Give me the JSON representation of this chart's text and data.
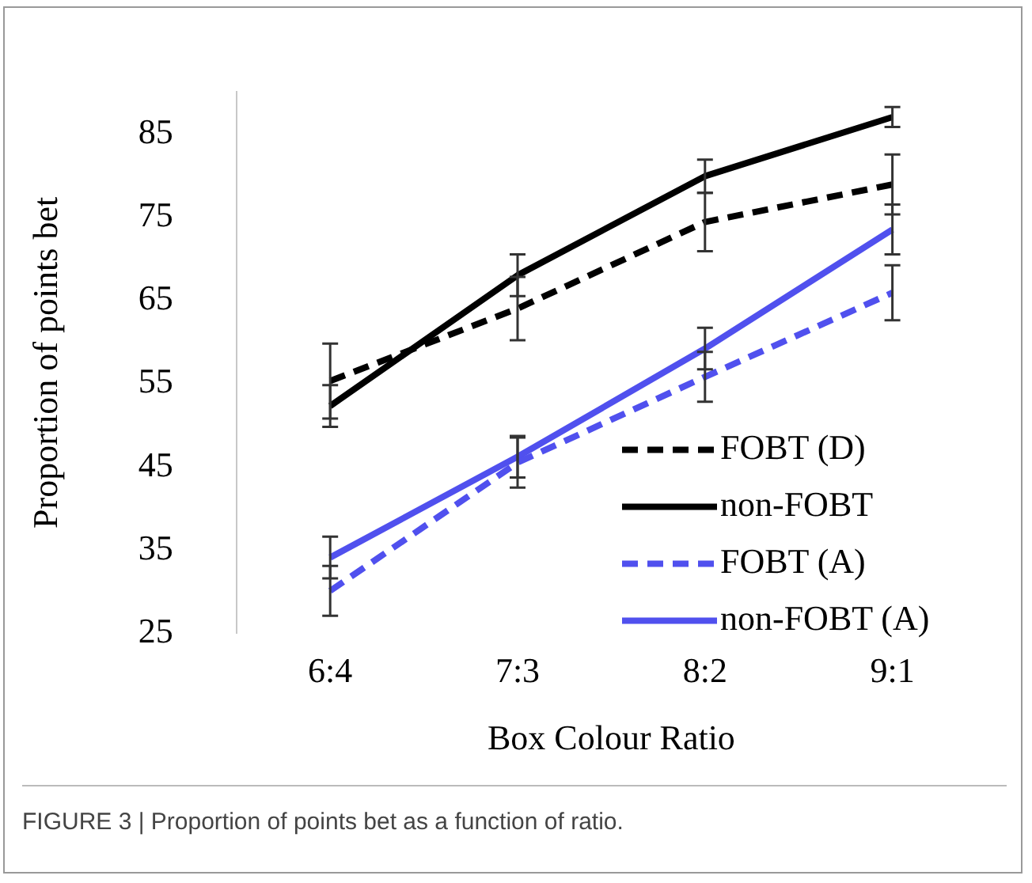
{
  "chart_data": {
    "type": "line",
    "xlabel": "Box Colour Ratio",
    "ylabel": "Proportion of points bet",
    "categories": [
      "6:4",
      "7:3",
      "8:2",
      "9:1"
    ],
    "series": [
      {
        "name": "FOBT (D)",
        "color": "#000000",
        "line_style": "dashed",
        "values": [
          55.3,
          64,
          74.4,
          78.9
        ],
        "errors": [
          4.5,
          3.8,
          3.5,
          3.6
        ]
      },
      {
        "name": "non-FOBT",
        "color": "#000000",
        "line_style": "solid",
        "values": [
          52.3,
          68,
          79.9,
          87
        ],
        "errors": [
          2.5,
          2.5,
          2,
          1.2
        ]
      },
      {
        "name": "FOBT (A)",
        "color": "#5050ee",
        "line_style": "dashed",
        "values": [
          30.1,
          45.5,
          55.8,
          65.9
        ],
        "errors": [
          3,
          3,
          3,
          3.3
        ]
      },
      {
        "name": "non-FOBT (A)",
        "color": "#5050ee",
        "line_style": "solid",
        "values": [
          34.1,
          46.2,
          59.2,
          73.5
        ],
        "errors": [
          2.5,
          2.5,
          2.5,
          3
        ]
      }
    ],
    "ylim": [
      25,
      90
    ],
    "yticks": [
      25,
      35,
      45,
      55,
      65,
      75,
      85
    ],
    "grid": false,
    "legend": "bottom right",
    "marker": "none",
    "annotations": [
      "FIGURE 3 | Proportion of points bet as a function of ratio."
    ]
  }
}
